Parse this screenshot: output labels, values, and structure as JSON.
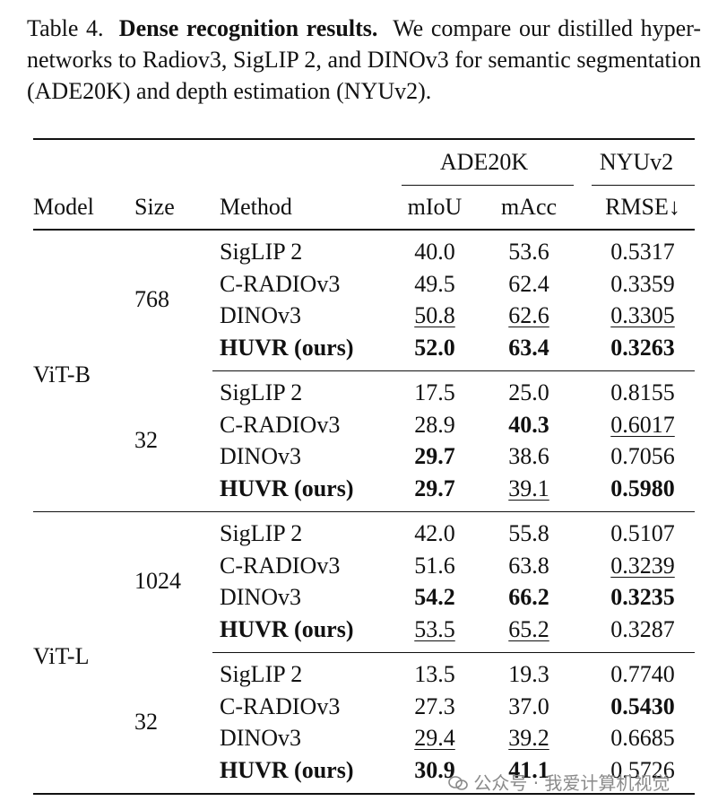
{
  "caption": {
    "label": "Table 4.",
    "title": "Dense recognition results.",
    "text": "We compare our distilled hyper-networks to Radiov3, SigLIP 2, and DINOv3 for semantic segmentation (ADE20K) and depth estimation (NYUv2)."
  },
  "table": {
    "header": {
      "groups": [
        "ADE20K",
        "NYUv2"
      ],
      "columns": [
        "Model",
        "Size",
        "Method",
        "mIoU",
        "mAcc",
        "RMSE↓"
      ]
    },
    "blocks": [
      {
        "model": "ViT-B",
        "sizes": [
          {
            "size": "768",
            "rows": [
              {
                "cells": [
                  "SigLIP 2",
                  "40.0",
                  "53.6",
                  "0.5317"
                ]
              },
              {
                "cells": [
                  "C-RADIOv3",
                  "49.5",
                  "62.4",
                  "0.3359"
                ]
              },
              {
                "cells": [
                  "DINOv3",
                  "50.8",
                  "62.6",
                  "0.3305"
                ],
                "underline": [
                  1,
                  2,
                  3
                ]
              },
              {
                "cells": [
                  "HUVR (ours)",
                  "52.0",
                  "63.4",
                  "0.3263"
                ],
                "bold": [
                  0,
                  1,
                  2,
                  3
                ]
              }
            ]
          },
          {
            "size": "32",
            "rows": [
              {
                "cells": [
                  "SigLIP 2",
                  "17.5",
                  "25.0",
                  "0.8155"
                ]
              },
              {
                "cells": [
                  "C-RADIOv3",
                  "28.9",
                  "40.3",
                  "0.6017"
                ],
                "bold": [
                  2
                ],
                "underline": [
                  3
                ]
              },
              {
                "cells": [
                  "DINOv3",
                  "29.7",
                  "38.6",
                  "0.7056"
                ],
                "bold": [
                  1
                ]
              },
              {
                "cells": [
                  "HUVR (ours)",
                  "29.7",
                  "39.1",
                  "0.5980"
                ],
                "bold": [
                  0,
                  1,
                  3
                ],
                "underline": [
                  2
                ]
              }
            ]
          }
        ]
      },
      {
        "model": "ViT-L",
        "sizes": [
          {
            "size": "1024",
            "rows": [
              {
                "cells": [
                  "SigLIP 2",
                  "42.0",
                  "55.8",
                  "0.5107"
                ]
              },
              {
                "cells": [
                  "C-RADIOv3",
                  "51.6",
                  "63.8",
                  "0.3239"
                ],
                "underline": [
                  3
                ]
              },
              {
                "cells": [
                  "DINOv3",
                  "54.2",
                  "66.2",
                  "0.3235"
                ],
                "bold": [
                  1,
                  2,
                  3
                ]
              },
              {
                "cells": [
                  "HUVR (ours)",
                  "53.5",
                  "65.2",
                  "0.3287"
                ],
                "bold": [
                  0
                ],
                "underline": [
                  1,
                  2
                ]
              }
            ]
          },
          {
            "size": "32",
            "rows": [
              {
                "cells": [
                  "SigLIP 2",
                  "13.5",
                  "19.3",
                  "0.7740"
                ]
              },
              {
                "cells": [
                  "C-RADIOv3",
                  "27.3",
                  "37.0",
                  "0.5430"
                ],
                "bold": [
                  3
                ]
              },
              {
                "cells": [
                  "DINOv3",
                  "29.4",
                  "39.2",
                  "0.6685"
                ],
                "underline": [
                  1,
                  2
                ]
              },
              {
                "cells": [
                  "HUVR (ours)",
                  "30.9",
                  "41.1",
                  "0.5726"
                ],
                "bold": [
                  0,
                  1,
                  2
                ]
              }
            ]
          }
        ]
      }
    ]
  },
  "watermark": "公众号 · 我爱计算机视觉"
}
